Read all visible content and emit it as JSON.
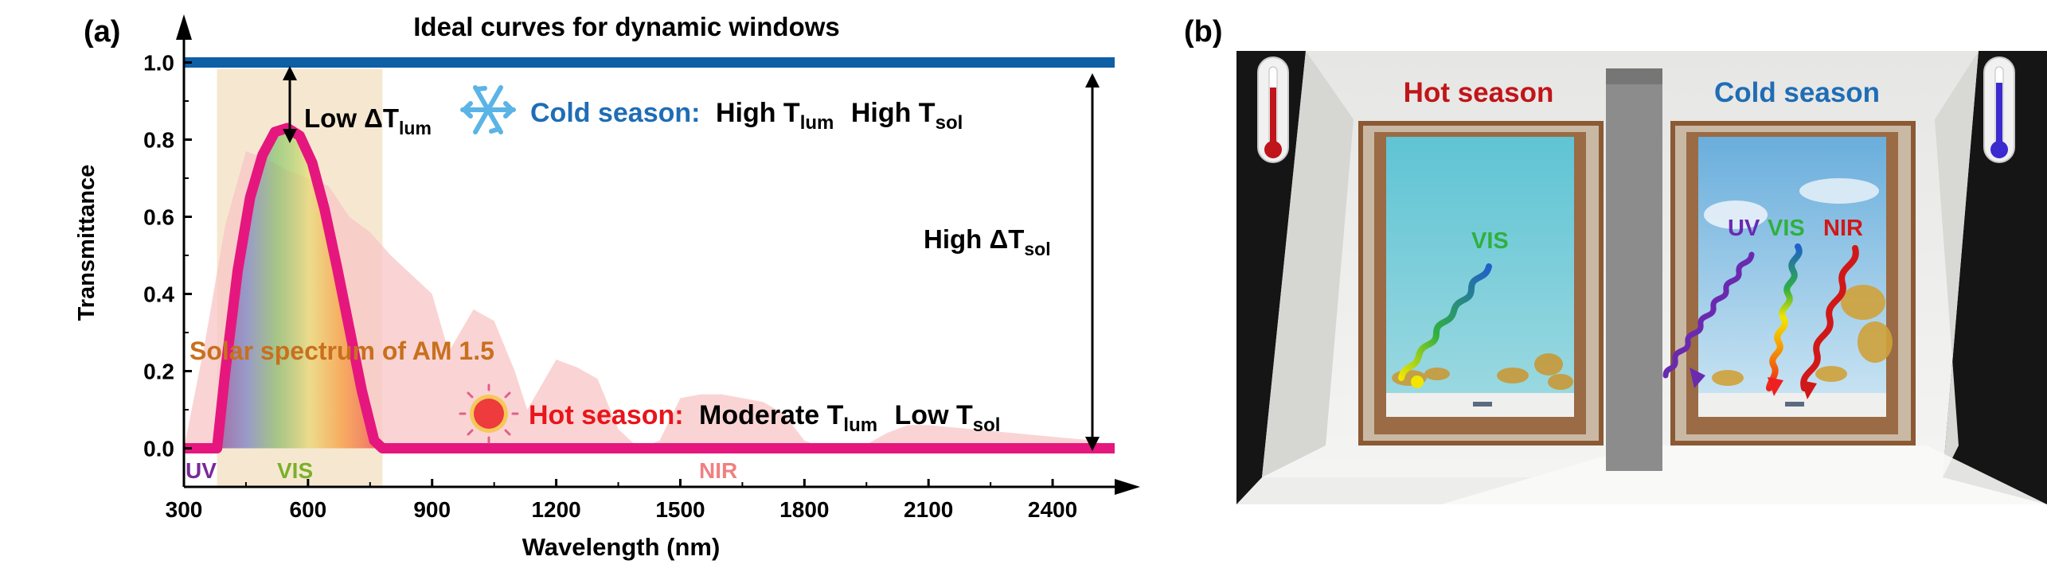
{
  "panel_a": {
    "label": "(a)",
    "title": "Ideal curves for dynamic windows",
    "annotations": {
      "low_dt_lum_prefix": "Low ΔT",
      "low_dt_lum_sub": "lum",
      "cold_label": "Cold season:",
      "cold_text_1": "High T",
      "cold_text_1_sub": "lum",
      "cold_text_2": "High T",
      "cold_text_2_sub": "sol",
      "high_dt_sol_prefix": "High ΔT",
      "high_dt_sol_sub": "sol",
      "solar_spectrum": "Solar spectrum of AM 1.5",
      "hot_label": "Hot season:",
      "hot_text_1": "Moderate T",
      "hot_text_1_sub": "lum",
      "hot_text_2": "Low T",
      "hot_text_2_sub": "sol",
      "uv": "UV",
      "vis": "VIS",
      "nir": "NIR"
    }
  },
  "panel_b": {
    "label": "(b)",
    "hot_season": "Hot season",
    "cold_season": "Cold season",
    "vis": "VIS",
    "uv": "UV",
    "nir": "NIR"
  },
  "colors": {
    "cold_line": "#0e5fa6",
    "hot_line": "#e5177e",
    "hot_text": "#e8151b",
    "cold_text": "#1f6db5",
    "solar_fill": "#f8c6c6",
    "vis_band": "#f4e4c8"
  },
  "chart_data": {
    "type": "line",
    "title": "Ideal curves for dynamic windows",
    "xlabel": "Wavelength (nm)",
    "ylabel": "Transmittance",
    "xlim": [
      300,
      2550
    ],
    "ylim": [
      -0.1,
      1.1
    ],
    "xticks": [
      300,
      600,
      900,
      1200,
      1500,
      1800,
      2100,
      2400
    ],
    "yticks": [
      0.0,
      0.2,
      0.4,
      0.6,
      0.8,
      1.0
    ],
    "xtick_labels": [
      "300",
      "600",
      "900",
      "1200",
      "1500",
      "1800",
      "2100",
      "2400"
    ],
    "ytick_labels": [
      "0.0",
      "0.2",
      "0.4",
      "0.6",
      "0.8",
      "1.0"
    ],
    "vis_band": [
      380,
      780
    ],
    "grid": false,
    "series": [
      {
        "name": "Cold season",
        "x": [
          300,
          2550
        ],
        "y": [
          1.0,
          1.0
        ]
      },
      {
        "name": "Hot season",
        "x": [
          300,
          380,
          400,
          430,
          460,
          490,
          520,
          550,
          580,
          610,
          640,
          670,
          700,
          730,
          760,
          780,
          2550
        ],
        "y": [
          0.0,
          0.0,
          0.2,
          0.46,
          0.65,
          0.76,
          0.82,
          0.83,
          0.81,
          0.74,
          0.62,
          0.47,
          0.31,
          0.15,
          0.02,
          0.0,
          0.0
        ]
      },
      {
        "name": "Solar spectrum of AM 1.5",
        "x": [
          300,
          350,
          400,
          450,
          500,
          550,
          600,
          650,
          700,
          750,
          800,
          850,
          900,
          940,
          1000,
          1050,
          1100,
          1130,
          1200,
          1250,
          1300,
          1350,
          1400,
          1450,
          1500,
          1550,
          1600,
          1650,
          1700,
          1750,
          1800,
          1850,
          1900,
          1950,
          2000,
          2050,
          2100,
          2200,
          2300,
          2400,
          2500,
          2550
        ],
        "y": [
          0.0,
          0.27,
          0.58,
          0.77,
          0.75,
          0.72,
          0.7,
          0.68,
          0.6,
          0.56,
          0.5,
          0.45,
          0.4,
          0.25,
          0.36,
          0.33,
          0.2,
          0.1,
          0.23,
          0.21,
          0.18,
          0.05,
          0.0,
          0.02,
          0.13,
          0.14,
          0.14,
          0.13,
          0.12,
          0.09,
          0.02,
          0.0,
          0.0,
          0.01,
          0.04,
          0.06,
          0.06,
          0.05,
          0.04,
          0.03,
          0.02,
          0.0
        ]
      }
    ]
  }
}
